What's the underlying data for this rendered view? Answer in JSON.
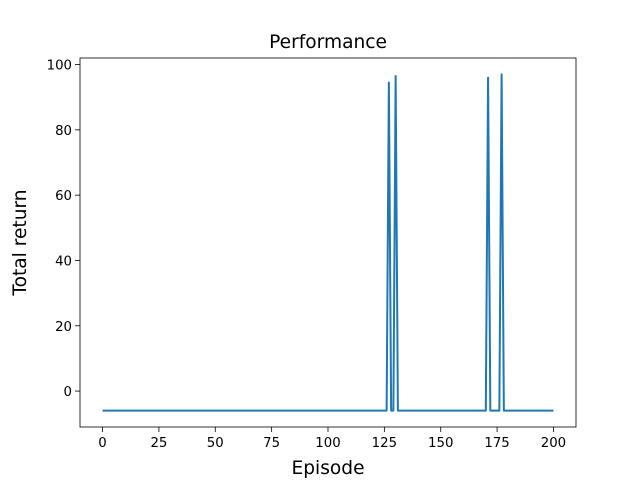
{
  "chart_data": {
    "type": "line",
    "title": "Performance",
    "xlabel": "Episode",
    "ylabel": "Total return",
    "xlim": [
      -10,
      210
    ],
    "ylim": [
      -11,
      102
    ],
    "xticks": [
      0,
      25,
      50,
      75,
      100,
      125,
      150,
      175,
      200
    ],
    "yticks": [
      0,
      20,
      40,
      60,
      80,
      100
    ],
    "grid": false,
    "legend": "none",
    "colors": {
      "line": "#1f77b4"
    },
    "series": [
      {
        "x": [
          0,
          126,
          127,
          128,
          129,
          130,
          131,
          169,
          170,
          171,
          172,
          175,
          176,
          177,
          178,
          200
        ],
        "y": [
          -6,
          -6,
          94.5,
          -6,
          -6,
          96.5,
          -6,
          -6,
          -6,
          96,
          -6,
          -6,
          -6,
          97,
          -6,
          -6
        ]
      }
    ]
  }
}
